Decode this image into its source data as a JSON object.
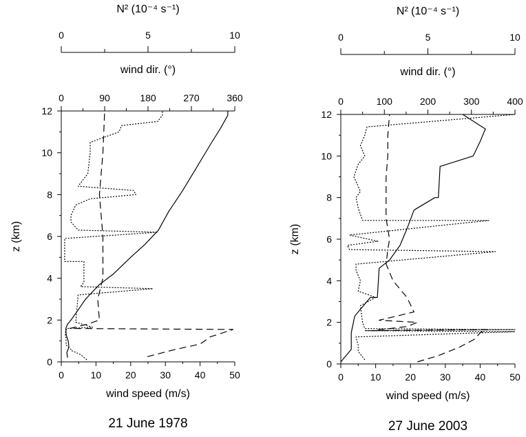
{
  "chart_data": [
    {
      "type": "line",
      "caption": "21 June 1978",
      "ylabel": "z (km)",
      "ylim": [
        0,
        12
      ],
      "yticks": [
        0,
        2,
        4,
        6,
        8,
        10,
        12
      ],
      "xlabel": "wind speed (m/s)",
      "xlim": [
        0,
        50
      ],
      "xticks": [
        0,
        10,
        20,
        30,
        40,
        50
      ],
      "top_axis_label": "wind dir. (°)",
      "top_axis_range": [
        0,
        360
      ],
      "top_axis_ticks": [
        0,
        90,
        180,
        270,
        360
      ],
      "top_axis_minor": [
        45,
        135,
        225,
        315
      ],
      "n2_axis_label": "N² (10⁻⁴ s⁻¹)",
      "n2_axis_range": [
        0,
        10
      ],
      "n2_axis_ticks": [
        0,
        5,
        10
      ],
      "n2_axis_minor": [
        2.5,
        7.5
      ],
      "series": [
        {
          "style": "solid",
          "axis": "bottom",
          "points": [
            [
              1.8,
              0.2
            ],
            [
              1.6,
              0.45
            ],
            [
              2.2,
              0.7
            ],
            [
              2.0,
              1.0
            ],
            [
              1.4,
              1.3
            ],
            [
              1.3,
              1.6
            ],
            [
              1.8,
              1.8
            ],
            [
              2.8,
              2.0
            ],
            [
              4.5,
              2.4
            ],
            [
              7,
              3.0
            ],
            [
              11,
              3.7
            ],
            [
              15,
              4.2
            ],
            [
              20,
              5.0
            ],
            [
              24,
              5.6
            ],
            [
              28,
              6.3
            ],
            [
              31,
              7.2
            ],
            [
              35,
              8.2
            ],
            [
              39,
              9.3
            ],
            [
              43,
              10.4
            ],
            [
              46,
              11.2
            ],
            [
              48,
              11.8
            ],
            [
              48,
              12.0
            ]
          ]
        },
        {
          "style": "dashed",
          "axis": "bottom",
          "points": [
            [
              24.8,
              0.25
            ],
            [
              33,
              0.6
            ],
            [
              40,
              0.85
            ],
            [
              43,
              1.2
            ],
            [
              49.5,
              1.55
            ],
            [
              2.5,
              1.6
            ],
            [
              7.5,
              1.8
            ],
            [
              11,
              2.0
            ],
            [
              10.5,
              3.0
            ],
            [
              12,
              4.0
            ],
            [
              12,
              6.0
            ],
            [
              11,
              8.0
            ],
            [
              12,
              10.0
            ],
            [
              12.5,
              12.0
            ]
          ]
        },
        {
          "style": "dotted",
          "axis": "top",
          "points": [
            [
              53,
              0.1
            ],
            [
              40,
              0.35
            ],
            [
              20,
              0.55
            ],
            [
              20,
              0.6
            ],
            [
              10,
              0.8
            ],
            [
              10,
              1.1
            ],
            [
              8,
              1.35
            ],
            [
              11,
              1.6
            ],
            [
              65,
              1.65
            ],
            [
              30,
              1.9
            ],
            [
              35,
              3.2
            ],
            [
              190,
              3.5
            ],
            [
              40,
              3.6
            ],
            [
              47,
              3.8
            ],
            [
              47,
              4.8
            ],
            [
              7,
              4.8
            ],
            [
              7,
              5.9
            ],
            [
              200,
              6.2
            ],
            [
              35,
              6.3
            ],
            [
              20,
              6.7
            ],
            [
              20,
              7.0
            ],
            [
              30,
              7.5
            ],
            [
              60,
              7.8
            ],
            [
              155,
              8.0
            ],
            [
              150,
              8.2
            ],
            [
              90,
              8.3
            ],
            [
              35,
              8.4
            ],
            [
              55,
              9.0
            ],
            [
              60,
              10.0
            ],
            [
              60,
              10.5
            ],
            [
              120,
              11.0
            ],
            [
              125,
              11.3
            ],
            [
              200,
              11.5
            ],
            [
              210,
              11.8
            ],
            [
              210,
              12.0
            ]
          ]
        }
      ]
    },
    {
      "type": "line",
      "caption": "27 June 2003",
      "ylabel": "z (km)",
      "ylim": [
        0,
        12
      ],
      "yticks": [
        0,
        2,
        4,
        6,
        8,
        10,
        12
      ],
      "xlabel": "wind speed (m/s)",
      "xlim": [
        0,
        50
      ],
      "xticks": [
        0,
        10,
        20,
        30,
        40,
        50
      ],
      "top_axis_label": "wind dir. (°)",
      "top_axis_range": [
        0,
        400
      ],
      "top_axis_ticks": [
        0,
        100,
        200,
        300,
        400
      ],
      "top_axis_minor": [
        50,
        150,
        250,
        350
      ],
      "n2_axis_label": "N² (10⁻⁴ s⁻¹)",
      "n2_axis_range": [
        0,
        10
      ],
      "n2_axis_ticks": [
        0,
        5,
        10
      ],
      "n2_axis_minor": [
        2.5,
        7.5
      ],
      "series": [
        {
          "style": "solid",
          "axis": "bottom",
          "points": [
            [
              0,
              0.1
            ],
            [
              3,
              0.7
            ],
            [
              3,
              1.5
            ],
            [
              4,
              2.3
            ],
            [
              8.5,
              3.2
            ],
            [
              10.5,
              3.2
            ],
            [
              11,
              4.6
            ],
            [
              14,
              5.0
            ],
            [
              17,
              5.7
            ],
            [
              19,
              6.5
            ],
            [
              21,
              7.4
            ],
            [
              27,
              8.0
            ],
            [
              28,
              8.0
            ],
            [
              28.5,
              9.5
            ],
            [
              38,
              10.0
            ],
            [
              40,
              10.7
            ],
            [
              41.5,
              11.3
            ],
            [
              35,
              12.0
            ]
          ]
        },
        {
          "style": "dashed",
          "axis": "bottom",
          "points": [
            [
              22,
              0.1
            ],
            [
              28,
              0.4
            ],
            [
              34,
              0.8
            ],
            [
              38.5,
              1.2
            ],
            [
              40,
              1.5
            ],
            [
              42,
              1.65
            ],
            [
              9,
              1.6
            ],
            [
              19,
              1.8
            ],
            [
              22,
              2.0
            ],
            [
              11,
              2.1
            ],
            [
              21,
              2.5
            ],
            [
              19,
              3.2
            ],
            [
              15,
              4.0
            ],
            [
              13,
              4.8
            ],
            [
              13.5,
              5.5
            ],
            [
              14,
              6.0
            ],
            [
              13,
              7.0
            ],
            [
              13,
              8.0
            ],
            [
              13,
              9.0
            ],
            [
              13.5,
              10.0
            ],
            [
              13.5,
              11.0
            ],
            [
              14,
              12.0
            ]
          ]
        },
        {
          "style": "dotted",
          "axis": "top",
          "points": [
            [
              55,
              0.2
            ],
            [
              40,
              0.6
            ],
            [
              40,
              0.9
            ],
            [
              35,
              1.3
            ],
            [
              400,
              1.55
            ],
            [
              55,
              1.6
            ],
            [
              400,
              1.65
            ],
            [
              55,
              1.7
            ],
            [
              50,
              2.0
            ],
            [
              45,
              2.8
            ],
            [
              80,
              3.2
            ],
            [
              40,
              3.5
            ],
            [
              45,
              4.0
            ],
            [
              35,
              4.5
            ],
            [
              35,
              4.8
            ],
            [
              355,
              5.4
            ],
            [
              20,
              5.5
            ],
            [
              15,
              5.7
            ],
            [
              85,
              5.9
            ],
            [
              20,
              6.2
            ],
            [
              340,
              6.9
            ],
            [
              50,
              6.9
            ],
            [
              40,
              7.5
            ],
            [
              35,
              8.0
            ],
            [
              45,
              8.3
            ],
            [
              30,
              9.0
            ],
            [
              35,
              9.3
            ],
            [
              40,
              9.6
            ],
            [
              55,
              10.0
            ],
            [
              45,
              10.5
            ],
            [
              55,
              11.0
            ],
            [
              60,
              11.4
            ],
            [
              400,
              12.0
            ]
          ]
        }
      ]
    }
  ]
}
